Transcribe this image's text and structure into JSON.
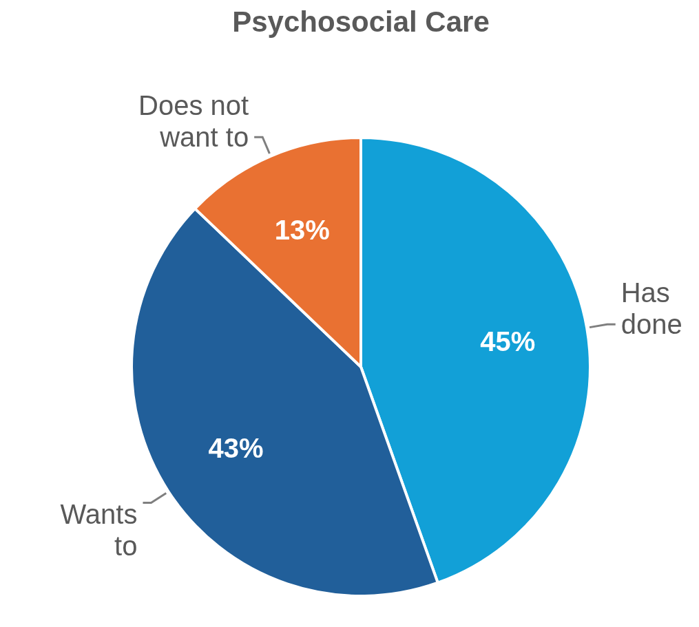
{
  "chart_data": {
    "type": "pie",
    "title": "Psychosocial Care",
    "categories": [
      "Has done",
      "Wants to",
      "Does not want to"
    ],
    "values": [
      45,
      43,
      13
    ],
    "colors": [
      "#12a0d7",
      "#215f9a",
      "#e97132"
    ],
    "value_labels": [
      "45%",
      "43%",
      "13%"
    ]
  }
}
